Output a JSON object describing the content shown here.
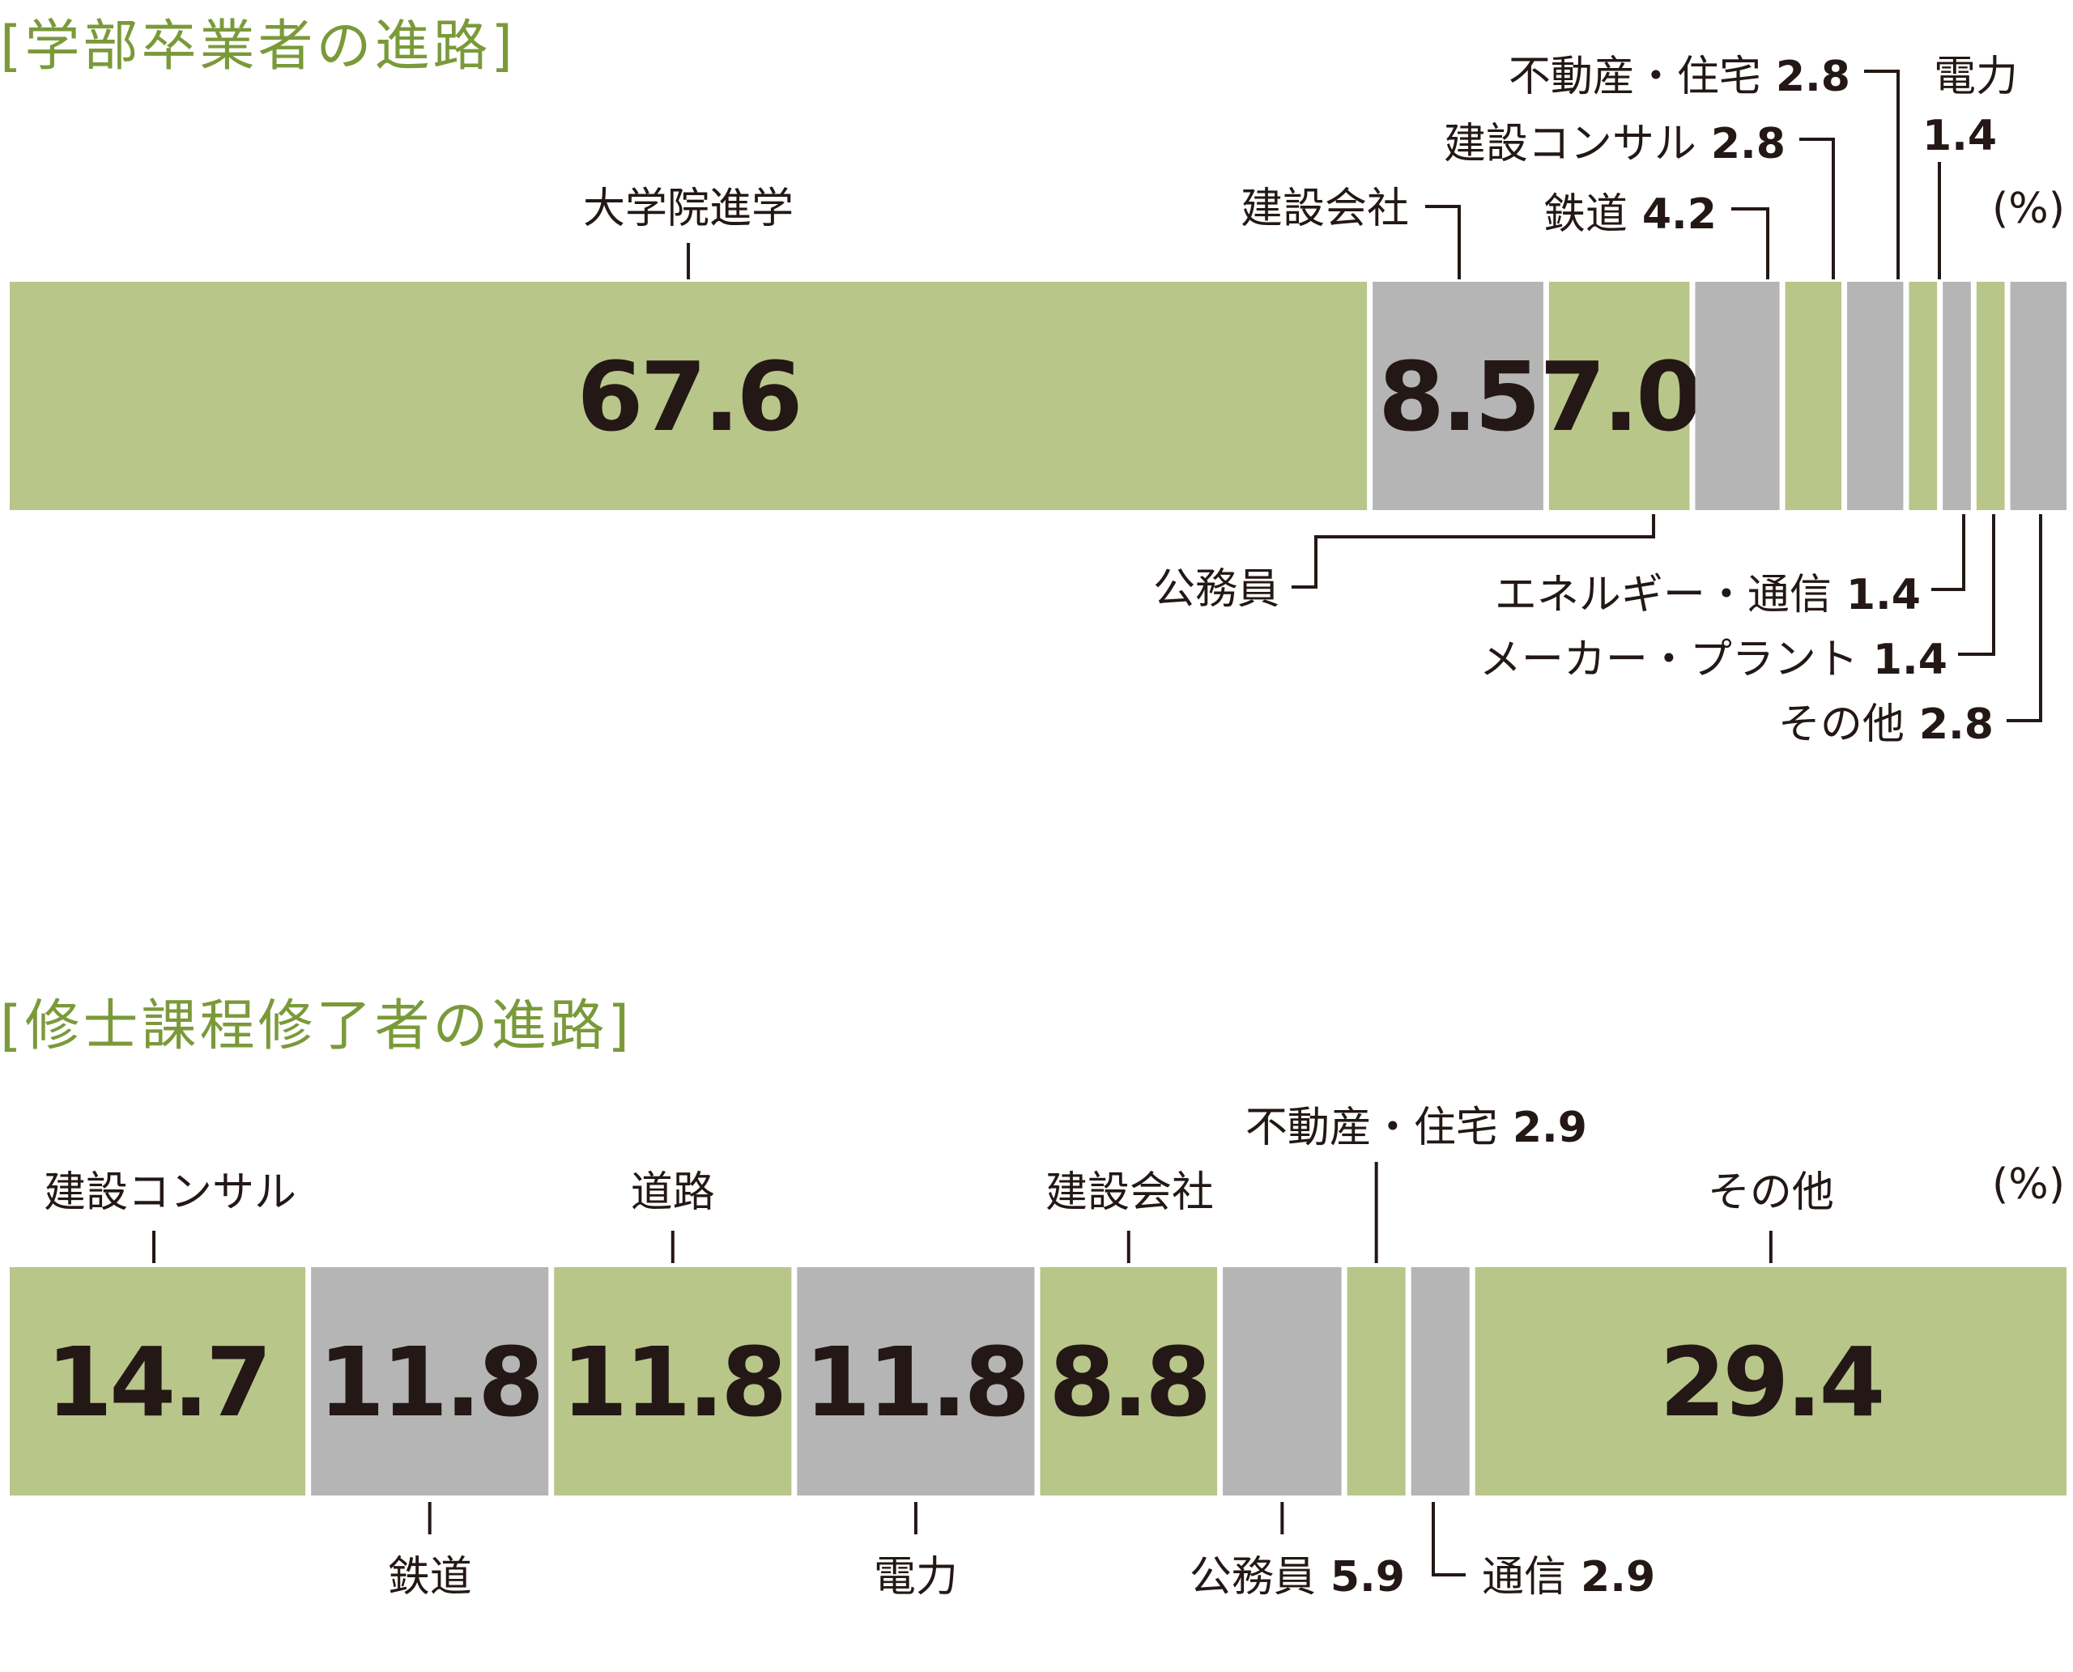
{
  "chart_data": [
    {
      "type": "bar",
      "title": "[学部卒業者の進路]",
      "unit": "(%)",
      "colors": {
        "green": "#b8c68a",
        "gray": "#b5b5b6"
      },
      "series": [
        {
          "name": "大学院進学",
          "value": 67.6
        },
        {
          "name": "建設会社",
          "value": 8.5
        },
        {
          "name": "公務員",
          "value": 7.0
        },
        {
          "name": "鉄道",
          "value": 4.2
        },
        {
          "name": "建設コンサル",
          "value": 2.8
        },
        {
          "name": "不動産・住宅",
          "value": 2.8
        },
        {
          "name": "電力",
          "value": 1.4
        },
        {
          "name": "エネルギー・通信",
          "value": 1.4
        },
        {
          "name": "メーカー・プラント",
          "value": 1.4
        },
        {
          "name": "その他",
          "value": 2.8
        }
      ]
    },
    {
      "type": "bar",
      "title": "[修士課程修了者の進路]",
      "unit": "(%)",
      "colors": {
        "green": "#b8c68a",
        "gray": "#b5b5b6"
      },
      "series": [
        {
          "name": "建設コンサル",
          "value": 14.7
        },
        {
          "name": "鉄道",
          "value": 11.8
        },
        {
          "name": "道路",
          "value": 11.8
        },
        {
          "name": "電力",
          "value": 11.8
        },
        {
          "name": "建設会社",
          "value": 8.8
        },
        {
          "name": "公務員",
          "value": 5.9
        },
        {
          "name": "不動産・住宅",
          "value": 2.9
        },
        {
          "name": "通信",
          "value": 2.9
        },
        {
          "name": "その他",
          "value": 29.4
        }
      ]
    }
  ]
}
